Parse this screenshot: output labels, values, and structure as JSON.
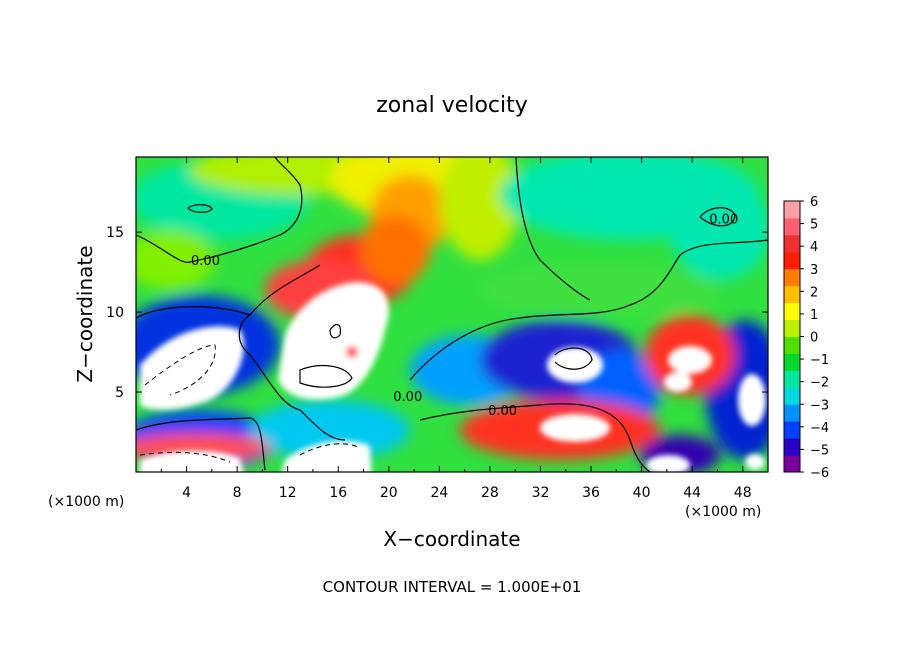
{
  "chart_data": {
    "type": "heatmap",
    "title": "zonal velocity",
    "xlabel": "X−coordinate",
    "ylabel": "Z−coordinate",
    "x_unit_left": "(×1000 m)",
    "x_unit_right": "(×1000 m)",
    "footer": "CONTOUR INTERVAL = 1.000E+01",
    "xlim": [
      0,
      50
    ],
    "ylim": [
      0,
      19.7
    ],
    "x_ticks": [
      4,
      8,
      12,
      16,
      20,
      24,
      28,
      32,
      36,
      40,
      44,
      48
    ],
    "y_ticks": [
      5,
      10,
      15
    ],
    "colorbar": {
      "min": -6,
      "max": 6,
      "ticks": [
        6,
        5,
        4,
        3,
        2,
        1,
        0,
        -1,
        -2,
        -3,
        -4,
        -5,
        -6
      ],
      "colors": [
        "#7b0099",
        "#2a00c8",
        "#0040ff",
        "#0090ff",
        "#00d8e0",
        "#00e8a0",
        "#00d830",
        "#50e000",
        "#b8f000",
        "#ffff00",
        "#ffc000",
        "#ff8000",
        "#ff2000",
        "#f03030",
        "#ff6070",
        "#ffa0a8"
      ]
    },
    "contour_labels": [
      {
        "text": "0.00",
        "x": 5.5,
        "y": 13.2
      },
      {
        "text": "0.00",
        "x": 21.5,
        "y": 4.7
      },
      {
        "text": "0.00",
        "x": 29.0,
        "y": 3.8
      },
      {
        "text": "0.00",
        "x": 46.5,
        "y": 15.8
      }
    ]
  }
}
